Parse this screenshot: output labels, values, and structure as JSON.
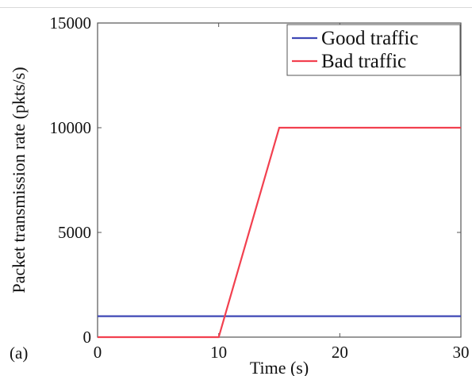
{
  "chart_data": {
    "type": "line",
    "panel_label": "(a)",
    "title": "",
    "xlabel": "Time (s)",
    "ylabel": "Packet transmission rate (pkts/s)",
    "xlim": [
      0,
      30
    ],
    "ylim": [
      0,
      15000
    ],
    "x_ticks": [
      0,
      10,
      20,
      30
    ],
    "y_ticks": [
      0,
      5000,
      10000,
      15000
    ],
    "x_tick_labels": [
      "0",
      "10",
      "20",
      "30"
    ],
    "y_tick_labels": [
      "0",
      "5000",
      "10000",
      "15000"
    ],
    "grid": false,
    "legend_position": "top-right",
    "series": [
      {
        "name": "Good traffic",
        "color": "#3f48b5",
        "x": [
          0,
          30
        ],
        "y": [
          1000,
          1000
        ]
      },
      {
        "name": "Bad traffic",
        "color": "#f2404f",
        "x": [
          0,
          10,
          15,
          30
        ],
        "y": [
          0,
          0,
          10000,
          10000
        ]
      }
    ]
  }
}
